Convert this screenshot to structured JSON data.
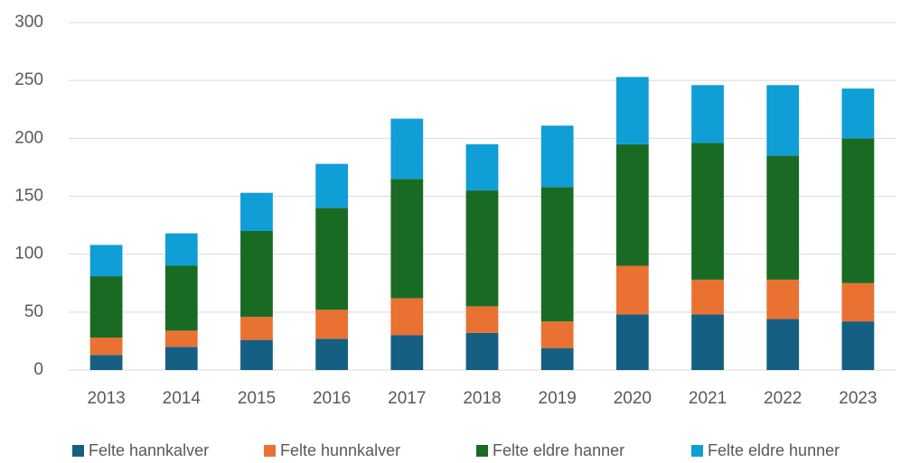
{
  "chart_data": {
    "type": "stacked_bar",
    "categories": [
      "2013",
      "2014",
      "2015",
      "2016",
      "2017",
      "2018",
      "2019",
      "2020",
      "2021",
      "2022",
      "2023"
    ],
    "series": [
      {
        "name": "Felte hannkalver",
        "color": "#156082",
        "values": [
          13,
          20,
          26,
          27,
          30,
          32,
          19,
          48,
          48,
          44,
          42
        ]
      },
      {
        "name": "Felte hunnkalver",
        "color": "#e97132",
        "values": [
          15,
          14,
          20,
          25,
          32,
          23,
          23,
          42,
          30,
          34,
          33
        ]
      },
      {
        "name": "Felte eldre hanner",
        "color": "#196b24",
        "values": [
          53,
          56,
          74,
          88,
          103,
          100,
          116,
          105,
          118,
          107,
          125
        ]
      },
      {
        "name": "Felte eldre hunner",
        "color": "#0f9ed5",
        "values": [
          27,
          28,
          33,
          38,
          52,
          40,
          53,
          58,
          50,
          61,
          43
        ]
      }
    ],
    "ylim": [
      0,
      300
    ],
    "yticks": [
      0,
      50,
      100,
      150,
      200,
      250,
      300
    ],
    "grid": true,
    "legend": "bottom"
  }
}
